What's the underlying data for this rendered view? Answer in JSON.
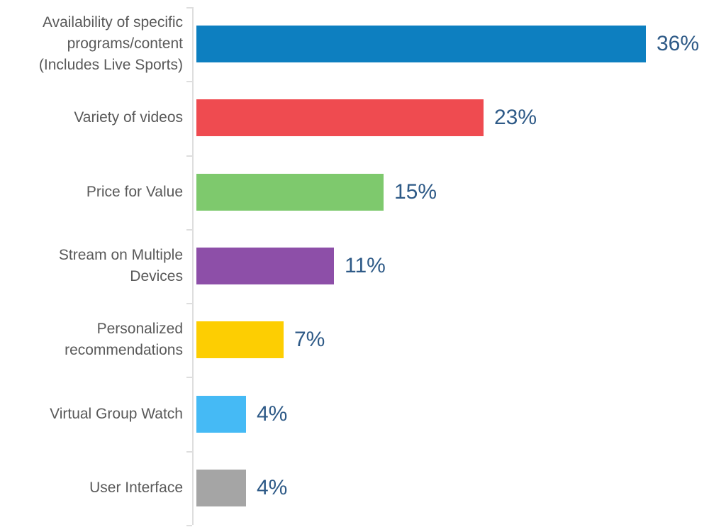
{
  "chart_data": {
    "type": "bar",
    "orientation": "horizontal",
    "title": "",
    "xlabel": "",
    "ylabel": "",
    "xlim": [
      0,
      40
    ],
    "grid": false,
    "legend": false,
    "categories": [
      "Availability of specific\nprograms/content\n(Includes Live Sports)",
      "Variety of videos",
      "Price for Value",
      "Stream on Multiple\nDevices",
      "Personalized\nrecommendations",
      "Virtual Group Watch",
      "User Interface"
    ],
    "values": [
      36,
      23,
      15,
      11,
      7,
      4,
      4
    ],
    "labels": [
      "36%",
      "23%",
      "15%",
      "11%",
      "7%",
      "4%",
      "4%"
    ],
    "colors": [
      "#0d7fc0",
      "#ef4b50",
      "#7ec96d",
      "#8d4fa8",
      "#fdce02",
      "#45baf5",
      "#a5a5a5"
    ],
    "value_label_color": "#2e5a87",
    "category_label_color": "#595959",
    "axis_color": "#dedede"
  }
}
